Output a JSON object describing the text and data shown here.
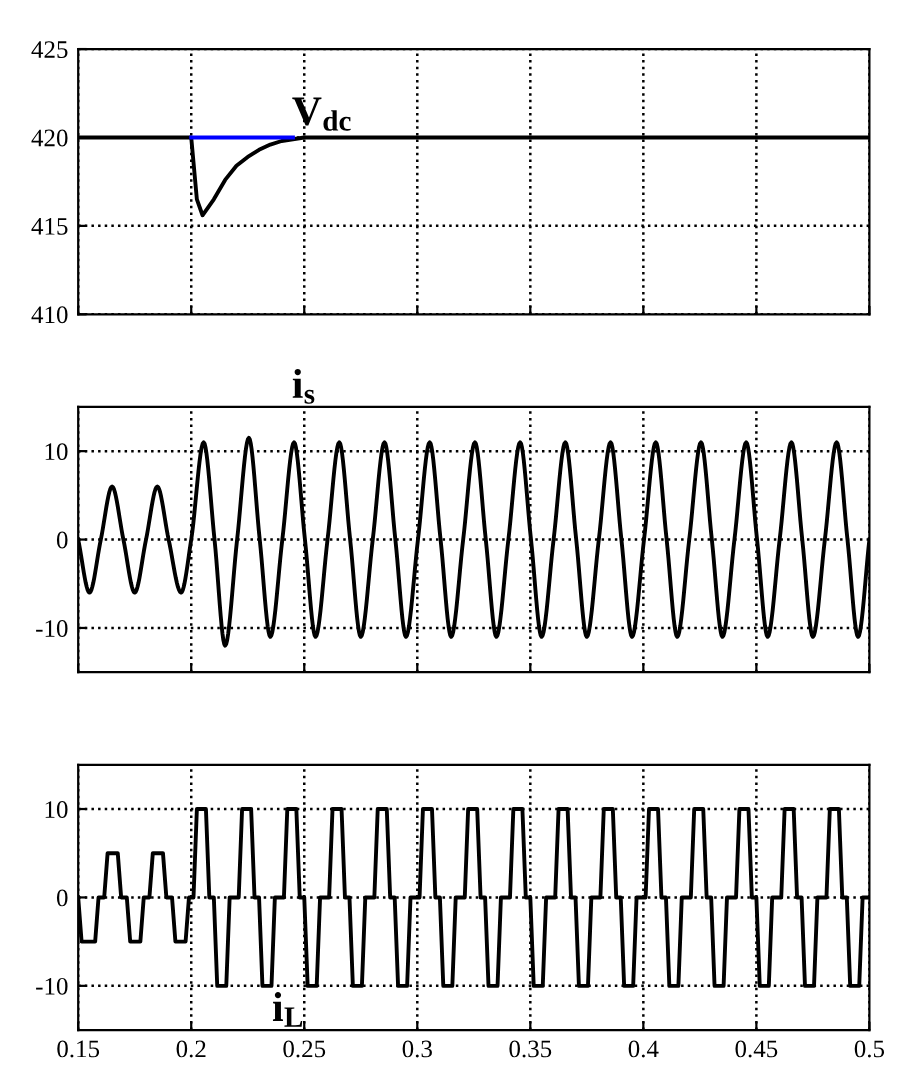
{
  "chart_data": [
    {
      "type": "line",
      "xlim": [
        0.15,
        0.5
      ],
      "xticks": [
        0.15,
        0.2,
        0.25,
        0.3,
        0.35,
        0.4,
        0.45,
        0.5
      ],
      "ylim": [
        410,
        425
      ],
      "yticks": [
        410,
        415,
        420,
        425
      ],
      "grid": true,
      "tick_labels": "y",
      "line_style": "solid",
      "series": [
        {
          "color": "#000000",
          "x": [
            0.15,
            0.2,
            0.2025,
            0.205,
            0.21,
            0.215,
            0.22,
            0.225,
            0.23,
            0.235,
            0.24,
            0.25,
            0.3,
            0.4,
            0.5
          ],
          "values": [
            420,
            420,
            416.5,
            415.6,
            416.5,
            417.6,
            418.4,
            418.9,
            419.3,
            419.6,
            419.8,
            420,
            420,
            420,
            420
          ]
        },
        {
          "color": "#0000ff",
          "x": [
            0.2,
            0.245
          ],
          "values": [
            420,
            420
          ]
        }
      ],
      "annotations": [
        "V$_{dc}$"
      ]
    },
    {
      "type": "line",
      "xlim": [
        0.15,
        0.5
      ],
      "xticks": [
        0.15,
        0.2,
        0.25,
        0.3,
        0.35,
        0.4,
        0.45,
        0.5
      ],
      "ylim": [
        -15,
        15
      ],
      "yticks": [
        -10,
        0,
        10
      ],
      "grid": true,
      "tick_labels": "y",
      "line_style": "solid",
      "series": [
        {
          "color": "#000000",
          "x": [
            0.15,
            0.155,
            0.16,
            0.165,
            0.17,
            0.175,
            0.18,
            0.185,
            0.19,
            0.1955,
            0.2,
            0.2055,
            0.2103,
            0.215,
            0.2203,
            0.2255,
            0.2303,
            0.235,
            0.2403,
            0.2455,
            0.2503,
            0.255,
            0.2603,
            0.2655,
            0.2703,
            0.275,
            0.2803,
            0.2855,
            0.2903,
            0.295,
            0.3003,
            0.3055,
            0.3103,
            0.315,
            0.3203,
            0.3255,
            0.3303,
            0.335,
            0.3403,
            0.3455,
            0.3503,
            0.355,
            0.3603,
            0.3655,
            0.3703,
            0.375,
            0.3803,
            0.3855,
            0.3903,
            0.395,
            0.4003,
            0.4055,
            0.4103,
            0.415,
            0.4203,
            0.4255,
            0.4303,
            0.435,
            0.4403,
            0.4455,
            0.4503,
            0.455,
            0.4603,
            0.4655,
            0.4703,
            0.475,
            0.4803,
            0.4855,
            0.4903,
            0.495,
            0.5
          ],
          "values": [
            0,
            -6,
            0,
            6,
            0,
            -6,
            0,
            6,
            0,
            -6,
            0,
            11,
            0,
            -12,
            0,
            11.5,
            0,
            -11,
            0,
            11,
            0,
            -11,
            0,
            11,
            0,
            -11,
            0,
            11,
            0,
            -11,
            0,
            11,
            0,
            -11,
            0,
            11,
            0,
            -11,
            0,
            11,
            0,
            -11,
            0,
            11,
            0,
            -11,
            0,
            11,
            0,
            -11,
            0,
            11,
            0,
            -11,
            0,
            11,
            0,
            -11,
            0,
            11,
            0,
            -11,
            0,
            11,
            0,
            -11,
            0,
            11,
            0,
            -11,
            0
          ]
        }
      ],
      "annotations": [
        "i$_{s}$"
      ]
    },
    {
      "type": "line",
      "xlim": [
        0.15,
        0.5
      ],
      "xticks": [
        0.15,
        0.2,
        0.25,
        0.3,
        0.35,
        0.4,
        0.45,
        0.5
      ],
      "ylim": [
        -15,
        15
      ],
      "yticks": [
        -10,
        0,
        10
      ],
      "grid": true,
      "line_style": "solid",
      "series": [
        {
          "color": "#000000",
          "x": [
            0.15,
            0.1515,
            0.1575,
            0.159,
            0.1615,
            0.163,
            0.1675,
            0.169,
            0.1715,
            0.173,
            0.1775,
            0.179,
            0.1815,
            0.183,
            0.1875,
            0.189,
            0.1915,
            0.193,
            0.1975,
            0.199,
            0.201,
            0.2025,
            0.2065,
            0.208,
            0.21,
            0.2115,
            0.2155,
            0.217,
            0.221,
            0.2225,
            0.2265,
            0.228,
            0.23,
            0.2315,
            0.2355,
            0.237,
            0.241,
            0.2425,
            0.2465,
            0.248,
            0.25,
            0.2515,
            0.2555,
            0.257,
            0.261,
            0.2625,
            0.2665,
            0.268,
            0.27,
            0.2715,
            0.2755,
            0.277,
            0.281,
            0.2825,
            0.2865,
            0.288,
            0.29,
            0.2915,
            0.2955,
            0.297,
            0.301,
            0.3025,
            0.3065,
            0.308,
            0.31,
            0.3115,
            0.3155,
            0.317,
            0.321,
            0.3225,
            0.3265,
            0.328,
            0.33,
            0.3315,
            0.3355,
            0.337,
            0.341,
            0.3425,
            0.3465,
            0.348,
            0.35,
            0.3515,
            0.3555,
            0.357,
            0.361,
            0.3625,
            0.3665,
            0.368,
            0.37,
            0.3715,
            0.3755,
            0.377,
            0.381,
            0.3825,
            0.3865,
            0.388,
            0.39,
            0.3915,
            0.3955,
            0.397,
            0.401,
            0.4025,
            0.4065,
            0.408,
            0.41,
            0.4115,
            0.4155,
            0.417,
            0.421,
            0.4225,
            0.4265,
            0.428,
            0.43,
            0.4315,
            0.4355,
            0.437,
            0.441,
            0.4425,
            0.4465,
            0.448,
            0.45,
            0.4515,
            0.4555,
            0.457,
            0.461,
            0.4625,
            0.4665,
            0.468,
            0.47,
            0.4715,
            0.4755,
            0.477,
            0.481,
            0.4825,
            0.4865,
            0.488,
            0.49,
            0.4915,
            0.4955,
            0.497,
            0.5
          ],
          "values": [
            0,
            -5,
            -5,
            0,
            0,
            5,
            5,
            0,
            0,
            -5,
            -5,
            0,
            0,
            5,
            5,
            0,
            0,
            -5,
            -5,
            0,
            0,
            10,
            10,
            0,
            0,
            -10,
            -10,
            0,
            0,
            10,
            10,
            0,
            0,
            -10,
            -10,
            0,
            0,
            10,
            10,
            0,
            0,
            -10,
            -10,
            0,
            0,
            10,
            10,
            0,
            0,
            -10,
            -10,
            0,
            0,
            10,
            10,
            0,
            0,
            -10,
            -10,
            0,
            0,
            10,
            10,
            0,
            0,
            -10,
            -10,
            0,
            0,
            10,
            10,
            0,
            0,
            -10,
            -10,
            0,
            0,
            10,
            10,
            0,
            0,
            -10,
            -10,
            0,
            0,
            10,
            10,
            0,
            0,
            -10,
            -10,
            0,
            0,
            10,
            10,
            0,
            0,
            -10,
            -10,
            0,
            0,
            10,
            10,
            0,
            0,
            -10,
            -10,
            0,
            0,
            10,
            10,
            0,
            0,
            -10,
            -10,
            0,
            0,
            10,
            10,
            0,
            0,
            -10,
            -10,
            0,
            0,
            10,
            10,
            0,
            0,
            -10,
            -10,
            0,
            0,
            10,
            10,
            0,
            0,
            -10,
            -10,
            0,
            0
          ]
        }
      ],
      "annotations": [
        "i$_{L}$"
      ]
    }
  ]
}
